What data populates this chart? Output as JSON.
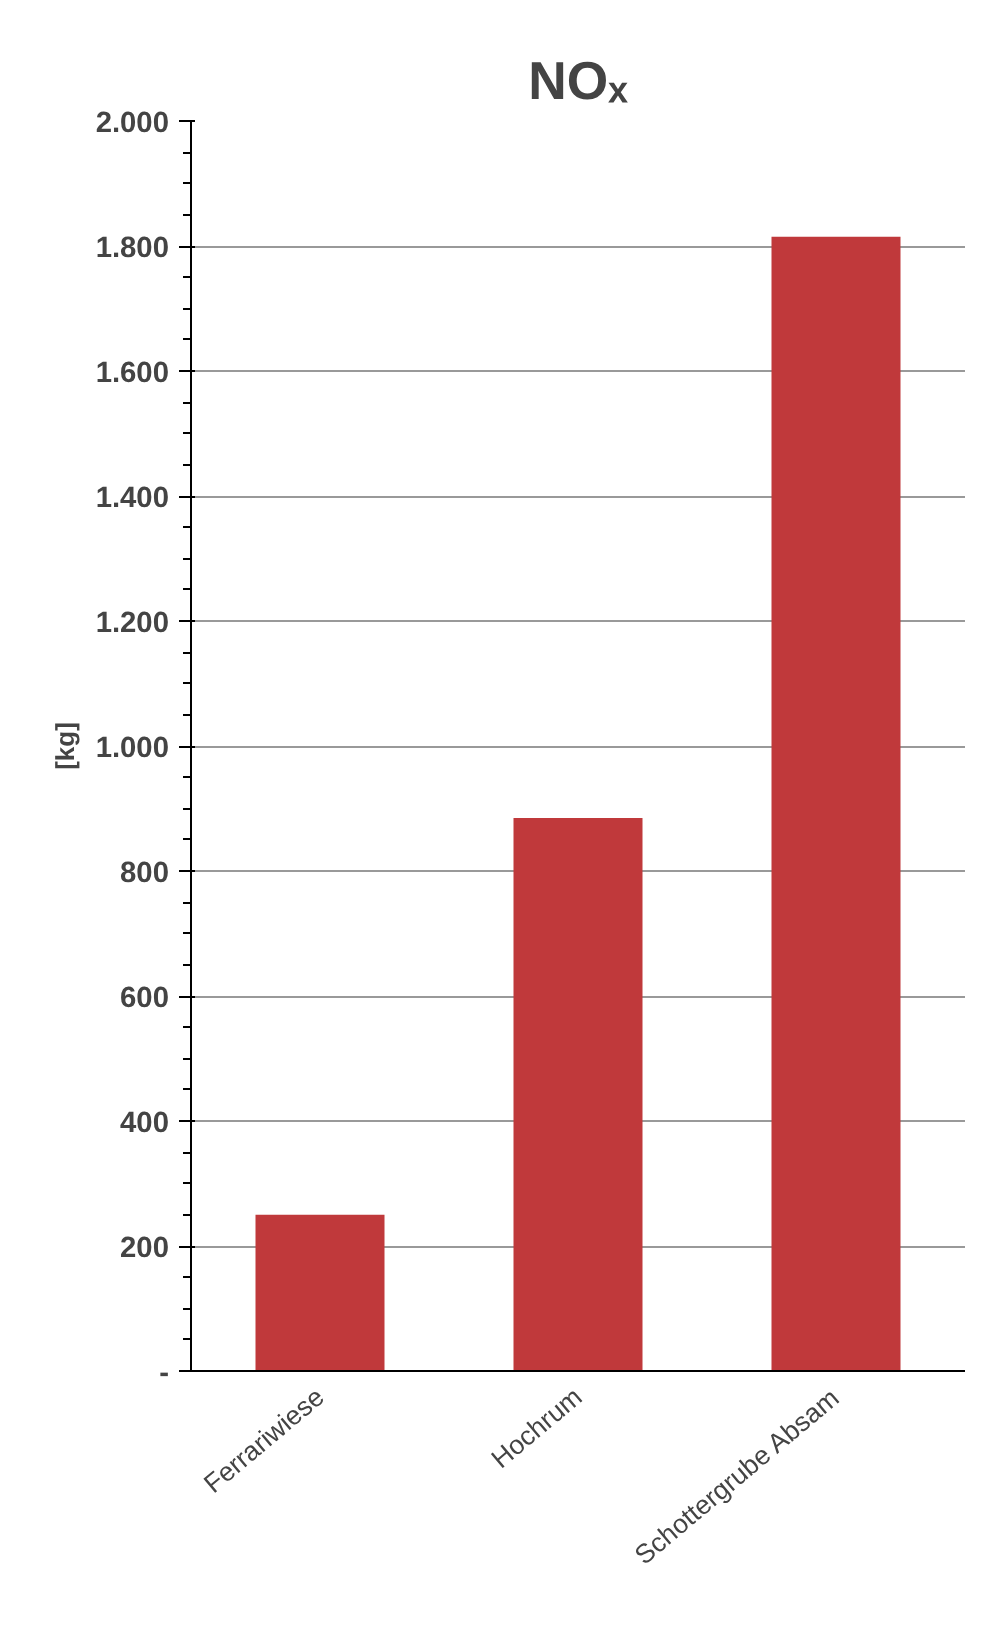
{
  "chart_data": {
    "type": "bar",
    "title": "NOₓ",
    "ylabel": "[kg]",
    "categories": [
      "Ferrariwiese",
      "Hochrum",
      "Schottergrube Absam"
    ],
    "values": [
      250,
      885,
      1815
    ],
    "color": "#c0393b",
    "ylim": [
      0,
      2000
    ],
    "yticks": [
      {
        "value": 0,
        "label": "-"
      },
      {
        "value": 200,
        "label": "200"
      },
      {
        "value": 400,
        "label": "400"
      },
      {
        "value": 600,
        "label": "600"
      },
      {
        "value": 800,
        "label": "800"
      },
      {
        "value": 1000,
        "label": "1.000"
      },
      {
        "value": 1200,
        "label": "1.200"
      },
      {
        "value": 1400,
        "label": "1.400"
      },
      {
        "value": 1600,
        "label": "1.600"
      },
      {
        "value": 1800,
        "label": "1.800"
      },
      {
        "value": 2000,
        "label": "2.000"
      }
    ],
    "grid": "y"
  }
}
